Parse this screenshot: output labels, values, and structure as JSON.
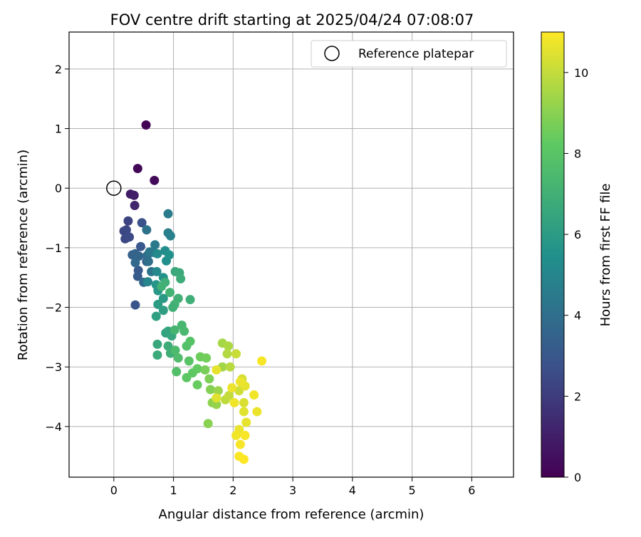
{
  "chart_data": {
    "type": "scatter",
    "title": "FOV centre drift starting at 2025/04/24 07:08:07",
    "xlabel": "Angular distance from reference (arcmin)",
    "ylabel": "Rotation from reference (arcmin)",
    "xlim": [
      -0.75,
      6.7
    ],
    "ylim": [
      -4.85,
      2.62
    ],
    "x_ticks": [
      0,
      1,
      2,
      3,
      4,
      5,
      6
    ],
    "y_ticks": [
      -4,
      -3,
      -2,
      -1,
      0,
      1,
      2
    ],
    "x_tick_labels": [
      "0",
      "1",
      "2",
      "3",
      "4",
      "5",
      "6"
    ],
    "y_tick_labels": [
      "−4",
      "−3",
      "−2",
      "−1",
      "0",
      "1",
      "2"
    ],
    "grid": true,
    "legend": {
      "position": "top-right",
      "entries": [
        "Reference platepar"
      ]
    },
    "reference_point": {
      "x": 0,
      "y": 0
    },
    "colorbar": {
      "label": "Hours from first FF file",
      "range": [
        0,
        11
      ],
      "ticks": [
        0,
        2,
        4,
        6,
        8,
        10
      ],
      "tick_labels": [
        "0",
        "2",
        "4",
        "6",
        "8",
        "10"
      ],
      "colormap": "viridis"
    },
    "points": [
      [
        0.54,
        1.06,
        0.1
      ],
      [
        0.4,
        0.33,
        0.2
      ],
      [
        0.68,
        0.13,
        0.3
      ],
      [
        0.28,
        -0.1,
        0.9
      ],
      [
        0.34,
        -0.12,
        1.0
      ],
      [
        0.35,
        -0.29,
        1.2
      ],
      [
        0.24,
        -0.55,
        2.2
      ],
      [
        0.21,
        -0.7,
        2.3
      ],
      [
        0.17,
        -0.72,
        2.4
      ],
      [
        0.22,
        -0.83,
        2.5
      ],
      [
        0.19,
        -0.85,
        2.4
      ],
      [
        0.26,
        -0.82,
        2.5
      ],
      [
        0.47,
        -0.58,
        2.7
      ],
      [
        0.36,
        -1.96,
        2.9
      ],
      [
        0.45,
        -0.98,
        3.0
      ],
      [
        0.41,
        -1.38,
        3.1
      ],
      [
        0.4,
        -1.48,
        3.2
      ],
      [
        0.55,
        -1.23,
        3.3
      ],
      [
        0.31,
        -1.12,
        3.4
      ],
      [
        0.36,
        -1.1,
        3.5
      ],
      [
        0.42,
        -1.14,
        3.6
      ],
      [
        0.36,
        -1.25,
        3.7
      ],
      [
        0.5,
        -1.58,
        3.8
      ],
      [
        0.56,
        -1.13,
        3.9
      ],
      [
        0.58,
        -1.23,
        4.0
      ],
      [
        0.55,
        -0.7,
        4.1
      ],
      [
        0.63,
        -1.4,
        4.2
      ],
      [
        0.6,
        -1.07,
        4.3
      ],
      [
        0.67,
        -1.08,
        4.4
      ],
      [
        0.69,
        -0.95,
        4.5
      ],
      [
        0.91,
        -0.43,
        4.6
      ],
      [
        0.91,
        -0.75,
        4.7
      ],
      [
        0.95,
        -0.8,
        4.8
      ],
      [
        0.57,
        -1.57,
        5.0
      ],
      [
        0.72,
        -1.4,
        5.1
      ],
      [
        0.73,
        -1.1,
        5.2
      ],
      [
        0.86,
        -1.05,
        5.3
      ],
      [
        0.88,
        -1.22,
        5.4
      ],
      [
        0.93,
        -1.12,
        5.5
      ],
      [
        0.83,
        -1.5,
        5.6
      ],
      [
        0.71,
        -1.62,
        5.7
      ],
      [
        0.74,
        -1.72,
        5.8
      ],
      [
        0.83,
        -1.85,
        5.9
      ],
      [
        0.74,
        -1.95,
        6.0
      ],
      [
        0.83,
        -2.05,
        6.1
      ],
      [
        0.71,
        -2.15,
        6.2
      ],
      [
        0.87,
        -2.43,
        6.3
      ],
      [
        0.91,
        -2.4,
        6.4
      ],
      [
        0.97,
        -2.48,
        6.5
      ],
      [
        0.73,
        -2.62,
        6.6
      ],
      [
        0.73,
        -2.8,
        6.7
      ],
      [
        0.91,
        -2.65,
        6.8
      ],
      [
        0.95,
        -2.77,
        6.9
      ],
      [
        1.03,
        -1.4,
        6.6
      ],
      [
        1.1,
        -1.42,
        6.7
      ],
      [
        1.12,
        -1.52,
        6.8
      ],
      [
        1.28,
        -1.87,
        6.9
      ],
      [
        1.08,
        -1.85,
        7.0
      ],
      [
        1.02,
        -1.95,
        7.1
      ],
      [
        0.99,
        -2.0,
        7.0
      ],
      [
        0.86,
        -1.58,
        6.9
      ],
      [
        0.8,
        -1.65,
        7.0
      ],
      [
        0.94,
        -1.75,
        7.1
      ],
      [
        1.02,
        -2.38,
        7.2
      ],
      [
        1.14,
        -2.3,
        7.3
      ],
      [
        1.18,
        -2.4,
        7.4
      ],
      [
        1.03,
        -2.72,
        7.5
      ],
      [
        1.08,
        -2.85,
        7.6
      ],
      [
        1.05,
        -3.08,
        7.7
      ],
      [
        1.22,
        -2.65,
        7.8
      ],
      [
        1.28,
        -2.57,
        7.9
      ],
      [
        1.26,
        -2.9,
        8.0
      ],
      [
        1.22,
        -3.18,
        8.1
      ],
      [
        1.32,
        -3.1,
        8.2
      ],
      [
        1.4,
        -3.03,
        8.3
      ],
      [
        1.4,
        -3.3,
        8.4
      ],
      [
        1.45,
        -2.83,
        8.5
      ],
      [
        1.55,
        -2.85,
        8.6
      ],
      [
        1.53,
        -3.05,
        8.7
      ],
      [
        1.6,
        -3.2,
        8.8
      ],
      [
        1.62,
        -3.38,
        8.9
      ],
      [
        1.58,
        -3.95,
        9.0
      ],
      [
        1.65,
        -3.6,
        9.1
      ],
      [
        1.72,
        -3.63,
        9.2
      ],
      [
        1.75,
        -3.4,
        9.3
      ],
      [
        1.82,
        -3.0,
        9.4
      ],
      [
        1.82,
        -2.6,
        9.5
      ],
      [
        1.92,
        -2.65,
        9.6
      ],
      [
        1.9,
        -2.78,
        9.7
      ],
      [
        1.95,
        -3.0,
        9.8
      ],
      [
        1.87,
        -3.55,
        9.9
      ],
      [
        1.93,
        -3.48,
        10.0
      ],
      [
        2.05,
        -2.78,
        10.1
      ],
      [
        2.1,
        -3.4,
        10.2
      ],
      [
        2.15,
        -3.2,
        10.3
      ],
      [
        2.18,
        -3.6,
        10.4
      ],
      [
        2.18,
        -3.75,
        10.5
      ],
      [
        2.22,
        -3.93,
        10.6
      ],
      [
        2.1,
        -4.05,
        10.7
      ],
      [
        2.05,
        -4.15,
        10.8
      ],
      [
        2.12,
        -4.3,
        10.9
      ],
      [
        2.1,
        -4.5,
        10.95
      ],
      [
        2.18,
        -4.55,
        11.0
      ],
      [
        2.35,
        -3.47,
        10.8
      ],
      [
        2.4,
        -3.75,
        10.7
      ],
      [
        2.48,
        -2.9,
        10.9
      ],
      [
        1.72,
        -3.05,
        10.6
      ],
      [
        1.72,
        -3.52,
        10.5
      ],
      [
        1.98,
        -3.35,
        10.7
      ],
      [
        2.02,
        -3.6,
        10.8
      ],
      [
        2.2,
        -4.15,
        10.9
      ],
      [
        2.2,
        -3.32,
        10.6
      ],
      [
        2.12,
        -3.25,
        10.7
      ]
    ]
  }
}
